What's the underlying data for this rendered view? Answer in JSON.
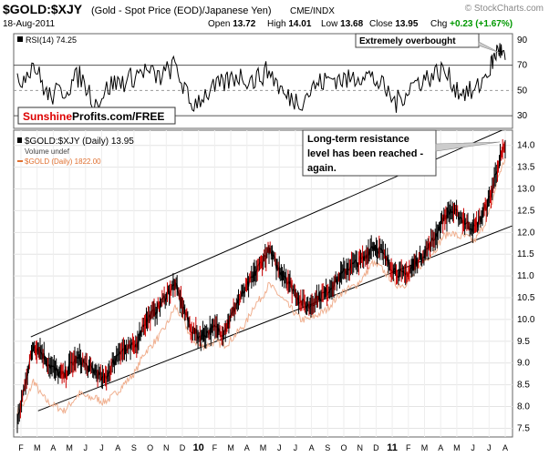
{
  "header": {
    "symbol": "$GOLD:$XJY",
    "description": "(Gold - Spot Price (EOD)/Japanese Yen)",
    "exchange": "CME/INDX",
    "watermark": "© StockCharts.com",
    "date": "18-Aug-2011",
    "open_label": "Open",
    "open": "13.72",
    "high_label": "High",
    "high": "14.01",
    "low_label": "Low",
    "low": "13.68",
    "close_label": "Close",
    "close": "13.95",
    "chg_label": "Chg",
    "chg": "+0.23 (+1.67%)"
  },
  "rsi": {
    "label": "RSI(14) 74.25",
    "annotation": "Extremely overbought",
    "ticks": [
      90,
      70,
      50,
      30
    ],
    "ylim": [
      20,
      95
    ],
    "overbought": 70,
    "oversold": 30,
    "midline": 50
  },
  "logo": {
    "part1": "Sunshine",
    "part2": "Profits.com/FREE"
  },
  "legend": {
    "primary": "$GOLD:$XJY (Daily) 13.95",
    "volume": "Volume undef",
    "secondary": "$GOLD (Daily) 1822.00"
  },
  "annotation": {
    "line1": "Long-term resistance",
    "line2": "level has been reached -",
    "line3": "again."
  },
  "colors": {
    "primary": "#000000",
    "down": "#cc0000",
    "secondary": "#f0b090",
    "logo_red": "#dd0000"
  },
  "chart_data": [
    {
      "type": "line",
      "name": "price",
      "ylim": [
        7.3,
        14.35
      ],
      "y_ticks": [
        7.5,
        8.0,
        8.5,
        9.0,
        9.5,
        10.0,
        10.5,
        11.0,
        11.5,
        12.0,
        12.5,
        13.0,
        13.5,
        14.0
      ],
      "x_ticks": [
        "F",
        "M",
        "A",
        "M",
        "J",
        "J",
        "A",
        "S",
        "O",
        "N",
        "D",
        "10",
        "F",
        "M",
        "A",
        "M",
        "J",
        "J",
        "A",
        "S",
        "O",
        "N",
        "D",
        "11",
        "F",
        "M",
        "A",
        "M",
        "J",
        "J",
        "A"
      ],
      "x_range": [
        "2009-01-20",
        "2011-08-18"
      ],
      "series": [
        {
          "name": "$GOLD:$XJY (Daily) 13.95",
          "x": [
            "2009-01-20",
            "2009-02-05",
            "2009-02-20",
            "2009-03-05",
            "2009-03-20",
            "2009-04-05",
            "2009-04-20",
            "2009-05-05",
            "2009-05-20",
            "2009-06-05",
            "2009-06-20",
            "2009-07-05",
            "2009-07-20",
            "2009-08-05",
            "2009-08-20",
            "2009-09-05",
            "2009-09-20",
            "2009-10-05",
            "2009-10-20",
            "2009-11-05",
            "2009-11-20",
            "2009-12-05",
            "2009-12-20",
            "2010-01-05",
            "2010-01-20",
            "2010-02-05",
            "2010-02-20",
            "2010-03-05",
            "2010-03-20",
            "2010-04-05",
            "2010-04-20",
            "2010-05-05",
            "2010-05-20",
            "2010-06-05",
            "2010-06-20",
            "2010-07-05",
            "2010-07-20",
            "2010-08-05",
            "2010-08-20",
            "2010-09-05",
            "2010-09-20",
            "2010-10-05",
            "2010-10-20",
            "2010-11-05",
            "2010-11-20",
            "2010-12-05",
            "2010-12-20",
            "2011-01-05",
            "2011-01-20",
            "2011-02-05",
            "2011-02-20",
            "2011-03-05",
            "2011-03-20",
            "2011-04-05",
            "2011-04-20",
            "2011-05-05",
            "2011-05-20",
            "2011-06-05",
            "2011-06-20",
            "2011-07-05",
            "2011-07-20",
            "2011-08-05",
            "2011-08-18"
          ],
          "values": [
            7.6,
            8.6,
            9.4,
            9.3,
            9.0,
            8.8,
            8.7,
            9.0,
            9.1,
            8.9,
            8.8,
            8.6,
            8.9,
            9.3,
            9.3,
            9.4,
            9.9,
            10.1,
            10.3,
            10.6,
            10.8,
            10.3,
            9.8,
            9.6,
            9.7,
            9.8,
            9.7,
            10.0,
            10.4,
            10.7,
            11.0,
            11.3,
            11.6,
            11.2,
            11.0,
            10.7,
            10.4,
            10.3,
            10.5,
            10.6,
            10.8,
            11.0,
            11.2,
            11.3,
            11.4,
            11.7,
            11.6,
            11.3,
            11.1,
            11.0,
            11.2,
            11.4,
            11.6,
            11.9,
            12.3,
            12.5,
            12.4,
            12.2,
            12.1,
            12.4,
            12.8,
            13.6,
            13.95
          ]
        },
        {
          "name": "$GOLD (Daily) 1822.00",
          "x": [
            "2009-01-20",
            "2009-02-05",
            "2009-02-20",
            "2009-03-05",
            "2009-03-20",
            "2009-04-05",
            "2009-04-20",
            "2009-05-05",
            "2009-05-20",
            "2009-06-05",
            "2009-06-20",
            "2009-07-05",
            "2009-07-20",
            "2009-08-05",
            "2009-08-20",
            "2009-09-05",
            "2009-09-20",
            "2009-10-05",
            "2009-10-20",
            "2009-11-05",
            "2009-11-20",
            "2009-12-05",
            "2009-12-20",
            "2010-01-05",
            "2010-01-20",
            "2010-02-05",
            "2010-02-20",
            "2010-03-05",
            "2010-03-20",
            "2010-04-05",
            "2010-04-20",
            "2010-05-05",
            "2010-05-20",
            "2010-06-05",
            "2010-06-20",
            "2010-07-05",
            "2010-07-20",
            "2010-08-05",
            "2010-08-20",
            "2010-09-05",
            "2010-09-20",
            "2010-10-05",
            "2010-10-20",
            "2010-11-05",
            "2010-11-20",
            "2010-12-05",
            "2010-12-20",
            "2011-01-05",
            "2011-01-20",
            "2011-02-05",
            "2011-02-20",
            "2011-03-05",
            "2011-03-20",
            "2011-04-05",
            "2011-04-20",
            "2011-05-05",
            "2011-05-20",
            "2011-06-05",
            "2011-06-20",
            "2011-07-05",
            "2011-07-20",
            "2011-08-05",
            "2011-08-18"
          ],
          "values": [
            7.9,
            8.1,
            8.6,
            8.3,
            8.1,
            8.0,
            7.9,
            8.1,
            8.3,
            8.2,
            8.2,
            8.1,
            8.2,
            8.4,
            8.6,
            8.8,
            9.2,
            9.4,
            9.6,
            9.9,
            10.3,
            10.0,
            9.6,
            9.4,
            9.4,
            9.5,
            9.4,
            9.5,
            9.7,
            9.9,
            10.3,
            10.5,
            10.8,
            10.6,
            10.4,
            10.2,
            10.0,
            10.0,
            10.1,
            10.2,
            10.4,
            10.6,
            10.7,
            10.8,
            11.0,
            11.3,
            11.2,
            11.0,
            10.8,
            10.8,
            11.0,
            11.2,
            11.4,
            11.6,
            11.9,
            12.0,
            11.9,
            11.9,
            11.8,
            12.1,
            12.5,
            13.3,
            13.7
          ]
        }
      ],
      "trendlines": [
        {
          "name": "resistance",
          "from": [
            "2009-02-15",
            9.6
          ],
          "to": [
            "2011-08-31",
            14.45
          ]
        },
        {
          "name": "support",
          "from": [
            "2009-03-01",
            7.9
          ],
          "to": [
            "2011-08-31",
            12.15
          ]
        }
      ]
    },
    {
      "type": "line",
      "name": "rsi",
      "series": [
        {
          "name": "RSI(14)",
          "x": [
            "2009-01-20",
            "2009-02-20",
            "2009-03-20",
            "2009-04-20",
            "2009-05-20",
            "2009-06-20",
            "2009-07-20",
            "2009-08-20",
            "2009-09-20",
            "2009-10-20",
            "2009-11-20",
            "2009-12-20",
            "2010-01-20",
            "2010-02-20",
            "2010-03-20",
            "2010-04-20",
            "2010-05-20",
            "2010-06-20",
            "2010-07-20",
            "2010-08-20",
            "2010-09-20",
            "2010-10-20",
            "2010-11-20",
            "2010-12-20",
            "2011-01-20",
            "2011-02-20",
            "2011-03-20",
            "2011-04-20",
            "2011-05-20",
            "2011-06-20",
            "2011-07-20",
            "2011-08-05",
            "2011-08-18"
          ],
          "values": [
            55,
            72,
            45,
            50,
            62,
            40,
            55,
            58,
            66,
            60,
            70,
            38,
            48,
            55,
            62,
            58,
            66,
            45,
            42,
            55,
            60,
            58,
            64,
            55,
            40,
            55,
            60,
            66,
            50,
            48,
            68,
            84,
            74.25
          ]
        }
      ]
    }
  ]
}
